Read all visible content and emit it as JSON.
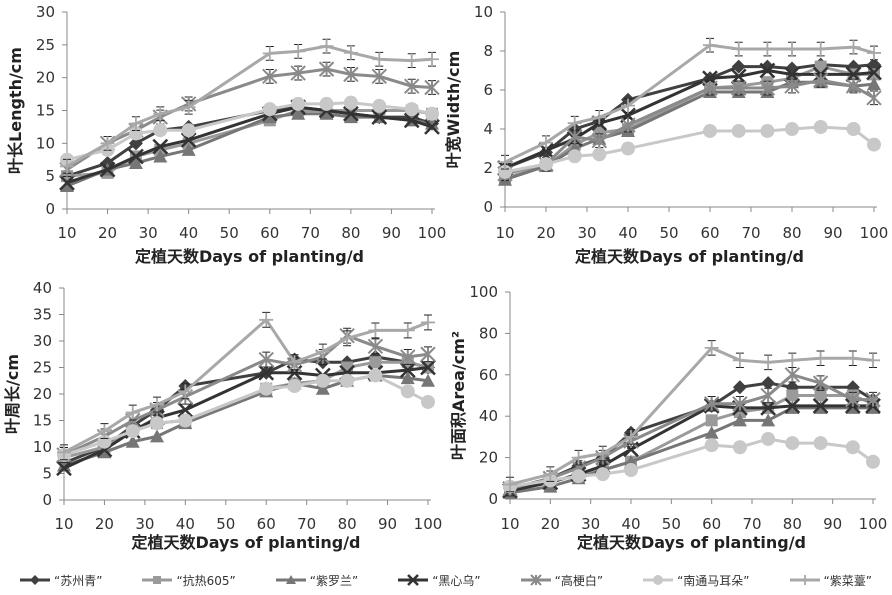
{
  "chart_data": [
    {
      "type": "line",
      "ylabel": "叶长Length/cm",
      "xlabel": "定植天数Days of planting/d",
      "ylim": [
        0,
        30
      ],
      "yticks": [
        0,
        5,
        10,
        15,
        20,
        25,
        30
      ],
      "xlim": [
        10,
        100
      ],
      "xticks": [
        10,
        20,
        30,
        40,
        50,
        60,
        70,
        80,
        90,
        100
      ],
      "x": [
        10,
        20,
        27,
        33,
        40,
        60,
        67,
        74,
        80,
        87,
        95,
        100
      ],
      "series": [
        {
          "name": "“苏州青”",
          "values": [
            5,
            7,
            10,
            12,
            12.5,
            15,
            15.5,
            15,
            14.5,
            14,
            14,
            13
          ]
        },
        {
          "name": "“抗热605”",
          "values": [
            5,
            5.5,
            8,
            9,
            10,
            13.5,
            15,
            15,
            15,
            15,
            15,
            14.5
          ]
        },
        {
          "name": "“紫罗兰”",
          "values": [
            3.5,
            6,
            7,
            8,
            9,
            14,
            14.5,
            14.5,
            14,
            14,
            13.5,
            13
          ]
        },
        {
          "name": "“黑心乌”",
          "values": [
            4,
            6,
            8,
            9.5,
            10.5,
            14.5,
            15.5,
            15,
            14.5,
            14,
            13.5,
            12.5
          ]
        },
        {
          "name": "“高梗白”",
          "values": [
            6,
            10,
            12,
            14,
            16,
            20.2,
            20.7,
            21.3,
            20.5,
            20.2,
            18.7,
            18.5
          ]
        },
        {
          "name": "“南通马耳朵”",
          "values": [
            7.5,
            9,
            11.5,
            12,
            12,
            15.2,
            16,
            16,
            16.2,
            15.7,
            15.2,
            14.5
          ]
        },
        {
          "name": "“紫菜薹”",
          "values": [
            6.5,
            10,
            13,
            14.5,
            15.5,
            23.7,
            24,
            24.8,
            23.8,
            22.8,
            22.6,
            22.8
          ]
        }
      ]
    },
    {
      "type": "line",
      "ylabel": "叶宽Width/cm",
      "xlabel": "定植天数Days of planting/d",
      "ylim": [
        0,
        10
      ],
      "yticks": [
        0,
        2,
        4,
        6,
        8,
        10
      ],
      "xlim": [
        10,
        100
      ],
      "xticks": [
        10,
        20,
        30,
        40,
        50,
        60,
        70,
        80,
        90,
        100
      ],
      "x": [
        10,
        20,
        27,
        33,
        40,
        60,
        67,
        74,
        80,
        87,
        95,
        100
      ],
      "series": [
        {
          "name": "“苏州青”",
          "values": [
            2,
            2.8,
            4,
            4.4,
            5.5,
            6.6,
            7.2,
            7.2,
            7.1,
            7.3,
            7.2,
            7.3
          ]
        },
        {
          "name": "“抗热605”",
          "values": [
            1.5,
            2.1,
            3.2,
            3.8,
            4,
            6.1,
            6.2,
            6.4,
            6.6,
            7.2,
            6.8,
            6.8
          ]
        },
        {
          "name": "“紫罗兰”",
          "values": [
            1.4,
            2.1,
            3,
            3.5,
            3.9,
            5.9,
            5.9,
            5.9,
            6.4,
            6.4,
            6.2,
            6.3
          ]
        },
        {
          "name": "“黑心乌”",
          "values": [
            2,
            2.9,
            3.5,
            4.3,
            4.7,
            6.6,
            6.7,
            7,
            6.8,
            6.8,
            6.8,
            6.9
          ]
        },
        {
          "name": "“高梗白”",
          "values": [
            1.7,
            2.2,
            3.6,
            3.4,
            4.2,
            6.1,
            6.1,
            6.1,
            6.2,
            6.5,
            6.2,
            5.6
          ]
        },
        {
          "name": "“南通马耳朵”",
          "values": [
            1.8,
            2.2,
            2.6,
            2.7,
            3,
            3.9,
            3.9,
            3.9,
            4,
            4.1,
            4,
            3.2
          ]
        },
        {
          "name": "“紫菜薹”",
          "values": [
            2.3,
            3.3,
            4.3,
            4.6,
            5.2,
            8.3,
            8.1,
            8.1,
            8.1,
            8.1,
            8.2,
            7.9
          ]
        }
      ]
    },
    {
      "type": "line",
      "ylabel": "叶周长/cm",
      "xlabel": "定植天数Days of planting/d",
      "ylim": [
        0,
        40
      ],
      "yticks": [
        0,
        5,
        10,
        15,
        20,
        25,
        30,
        35,
        40
      ],
      "xlim": [
        10,
        100
      ],
      "xticks": [
        10,
        20,
        30,
        40,
        50,
        60,
        70,
        80,
        90,
        100
      ],
      "x": [
        10,
        20,
        27,
        33,
        40,
        60,
        67,
        74,
        80,
        87,
        95,
        100
      ],
      "series": [
        {
          "name": "“苏州青”",
          "values": [
            7,
            10,
            14,
            17,
            21.5,
            24,
            26.5,
            26,
            26,
            27,
            26,
            25
          ]
        },
        {
          "name": "“抗热605”",
          "values": [
            8,
            10,
            13,
            14.5,
            15,
            21,
            22,
            22.5,
            25,
            26,
            26,
            25
          ]
        },
        {
          "name": "“紫罗兰”",
          "values": [
            6.5,
            9,
            11,
            12,
            14.5,
            20.5,
            22,
            21,
            22.5,
            23.5,
            23,
            22.5
          ]
        },
        {
          "name": "“黑心乌”",
          "values": [
            6,
            9.5,
            13,
            15.5,
            17,
            24,
            24,
            23.5,
            24,
            24,
            24.5,
            25
          ]
        },
        {
          "name": "“高梗白”",
          "values": [
            8.5,
            12,
            15,
            17,
            19.5,
            26.5,
            25.5,
            27,
            31,
            29,
            27,
            27.5
          ]
        },
        {
          "name": "“南通马耳朵”",
          "values": [
            8.5,
            11,
            13,
            14.5,
            15,
            21,
            21.5,
            22.5,
            22.5,
            23.5,
            20.5,
            18.5
          ]
        },
        {
          "name": "“紫菜薹”",
          "values": [
            9,
            13,
            16.5,
            18,
            20.5,
            34,
            26,
            28,
            30.5,
            32,
            32,
            33.5
          ]
        }
      ]
    },
    {
      "type": "line",
      "ylabel": "叶面积Area/cm²",
      "xlabel": "定植天数Days of planting/d",
      "ylim": [
        0,
        100
      ],
      "yticks": [
        0,
        20,
        40,
        60,
        80,
        100
      ],
      "xlim": [
        10,
        100
      ],
      "xticks": [
        10,
        20,
        30,
        40,
        50,
        60,
        70,
        80,
        90,
        100
      ],
      "x": [
        10,
        20,
        27,
        33,
        40,
        60,
        67,
        74,
        80,
        87,
        95,
        100
      ],
      "series": [
        {
          "name": "“苏州青”",
          "values": [
            5,
            10,
            16,
            20,
            32,
            45,
            54,
            56,
            54,
            54,
            54,
            48
          ]
        },
        {
          "name": "“抗热605”",
          "values": [
            5,
            8,
            12,
            14,
            18,
            38,
            42,
            44,
            50,
            50,
            50,
            46
          ]
        },
        {
          "name": "“紫罗兰”",
          "values": [
            3,
            6,
            10,
            14,
            18,
            32,
            38,
            38,
            44,
            44,
            44,
            44
          ]
        },
        {
          "name": "“黑心乌”",
          "values": [
            4,
            8,
            12,
            16,
            24,
            45,
            44,
            44,
            45,
            45,
            45,
            45
          ]
        },
        {
          "name": "“高梗白”",
          "values": [
            5,
            10,
            15,
            20,
            28,
            46,
            46,
            50,
            60,
            56,
            48,
            48
          ]
        },
        {
          "name": "“南通马耳朵”",
          "values": [
            6,
            9,
            11,
            12,
            14,
            26,
            25,
            29,
            27,
            27,
            25,
            18
          ]
        },
        {
          "name": "“紫菜薹”",
          "values": [
            7,
            12,
            20,
            22,
            30,
            73,
            67,
            66,
            67,
            68,
            68,
            67
          ]
        }
      ]
    }
  ],
  "legend": {
    "placement": "bottom",
    "items": [
      {
        "name": "“苏州青”",
        "marker": "diamond",
        "color": "#404040"
      },
      {
        "name": "“抗热605”",
        "marker": "square",
        "color": "#9a9a9a"
      },
      {
        "name": "“紫罗兰”",
        "marker": "triangle",
        "color": "#767676"
      },
      {
        "name": "“黑心乌”",
        "marker": "x",
        "color": "#333333"
      },
      {
        "name": "“高梗白”",
        "marker": "asterisk",
        "color": "#8a8a8a"
      },
      {
        "name": "“南通马耳朵”",
        "marker": "circle",
        "color": "#c8c8c8"
      },
      {
        "name": "“紫菜薹”",
        "marker": "plus",
        "color": "#a8a8a8"
      }
    ]
  }
}
